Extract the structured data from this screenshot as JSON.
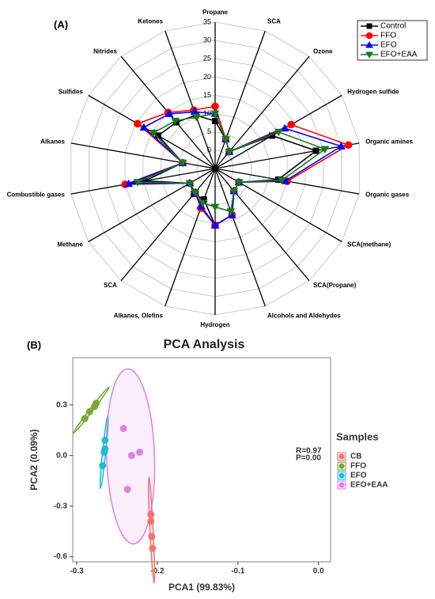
{
  "chart_data": [
    {
      "type": "radar",
      "panel_label": "(A)",
      "categories": [
        "Propane",
        "SCA",
        "Ozone",
        "Hydrogen sulfide",
        "Organic amines",
        "Organic gases",
        "SCA(methane)",
        "SCA(Propane)",
        "Alcohols and Aldehydes",
        "Hydrogen",
        "Alkanes, Olefins",
        "SCA",
        "Methane",
        "Combustible gases",
        "Alkanes",
        "Sulfides",
        "Nitrides",
        "Ketones"
      ],
      "rlim": [
        -5,
        35
      ],
      "rticks": [
        0,
        5,
        10,
        15,
        20,
        25,
        30,
        35
      ],
      "legend": "upper right",
      "series": [
        {
          "name": "Control",
          "color": "#000000",
          "marker": "square",
          "values": [
            8,
            3.5,
            1,
            13,
            23,
            12.5,
            2.5,
            3,
            8.5,
            10.5,
            4,
            4,
            3,
            14.5,
            4,
            13,
            11.5,
            10.5
          ]
        },
        {
          "name": "FFO",
          "color": "#ff0000",
          "marker": "circle",
          "values": [
            12,
            3.5,
            1,
            19,
            32,
            15,
            2.5,
            3,
            8.5,
            10.5,
            6.5,
            3.5,
            3,
            20,
            4,
            19.5,
            15,
            12
          ]
        },
        {
          "name": "EFO",
          "color": "#0000ff",
          "marker": "triangle-up",
          "values": [
            10,
            3.5,
            1,
            17,
            30,
            14.5,
            2.5,
            3,
            8.5,
            10.5,
            6,
            3.5,
            3,
            19,
            4,
            17.5,
            14.5,
            11.5
          ]
        },
        {
          "name": "EFO+EAA",
          "color": "#1a7a1a",
          "marker": "triangle-down",
          "values": [
            10,
            3.5,
            1,
            15,
            25.5,
            13.5,
            2.5,
            3,
            7.5,
            5.5,
            5,
            3.5,
            3,
            16.5,
            4,
            14.5,
            12,
            10
          ]
        }
      ]
    },
    {
      "type": "scatter",
      "panel_label": "(B)",
      "title": "PCA Analysis",
      "xlabel": "PCA1 (99.83%)",
      "ylabel": "PCA2 (0.09%)",
      "legend_title": "Samples",
      "annotations": [
        "R=0.97",
        "P=0.00"
      ],
      "xlim": [
        -0.305,
        0.015
      ],
      "ylim": [
        -0.63,
        0.58
      ],
      "xticks": [
        -0.3,
        -0.2,
        -0.1,
        {
          "value": 0,
          "label": "0.0"
        }
      ],
      "yticks": [
        0.3,
        {
          "value": 0,
          "label": "0.0"
        },
        -0.3,
        -0.6
      ],
      "grid": false,
      "ellipses": true,
      "series": [
        {
          "name": "CB",
          "color": "#f4736f",
          "x": [
            -0.208,
            -0.208,
            -0.207,
            -0.206
          ],
          "y": [
            -0.35,
            -0.39,
            -0.48,
            -0.55
          ]
        },
        {
          "name": "FFO",
          "color": "#7aa83a",
          "x": [
            -0.29,
            -0.284,
            -0.278,
            -0.276
          ],
          "y": [
            0.22,
            0.26,
            0.29,
            0.31
          ]
        },
        {
          "name": "EFO",
          "color": "#1cbdd6",
          "x": [
            -0.265,
            -0.265,
            -0.266,
            -0.268
          ],
          "y": [
            0.09,
            0.04,
            0.02,
            -0.06
          ]
        },
        {
          "name": "EFO+EAA",
          "color": "#e07ee8",
          "x": [
            -0.242,
            -0.232,
            -0.222,
            -0.237
          ],
          "y": [
            0.16,
            0.0,
            0.02,
            -0.2
          ]
        }
      ]
    }
  ]
}
